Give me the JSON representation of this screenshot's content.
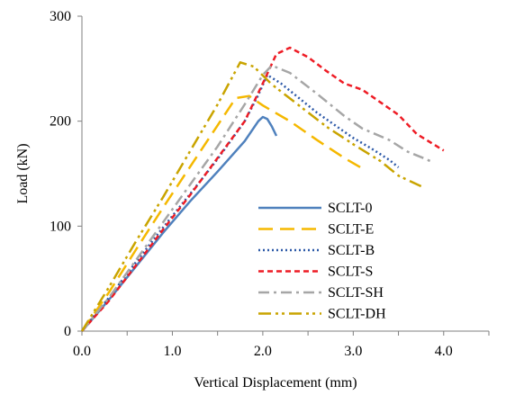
{
  "chart_data": {
    "type": "line",
    "title": "",
    "xlabel": "Vertical Displacement (mm)",
    "ylabel": "Load (kN)",
    "xlim": [
      0,
      4.5
    ],
    "ylim": [
      0,
      300
    ],
    "xticks": [
      0,
      1,
      2,
      3,
      4
    ],
    "xtick_labels": [
      "0.0",
      "1.0",
      "2.0",
      "3.0",
      "4.0"
    ],
    "yticks": [
      0,
      100,
      200,
      300
    ],
    "ytick_labels": [
      "0",
      "100",
      "200",
      "300"
    ],
    "grid": false,
    "legend_position": "lower-right",
    "series": [
      {
        "name": "SCLT-0",
        "color": "#4f81bd",
        "dash": "solid",
        "x": [
          0,
          0.3,
          0.6,
          0.9,
          1.2,
          1.5,
          1.8,
          1.95,
          2.0,
          2.05,
          2.1,
          2.15
        ],
        "y": [
          0,
          30,
          62,
          94,
          124,
          152,
          181,
          200,
          204,
          202,
          195,
          186
        ]
      },
      {
        "name": "SCLT-E",
        "color": "#f5b800",
        "dash": "long-dash",
        "x": [
          0,
          0.3,
          0.6,
          0.9,
          1.2,
          1.5,
          1.7,
          1.85,
          2.0,
          2.3,
          2.6,
          2.9,
          3.1
        ],
        "y": [
          0,
          37,
          78,
          118,
          157,
          196,
          222,
          224,
          215,
          200,
          182,
          165,
          155
        ]
      },
      {
        "name": "SCLT-B",
        "color": "#2e5aa8",
        "dash": "dotted",
        "x": [
          0,
          0.3,
          0.6,
          0.9,
          1.2,
          1.5,
          1.8,
          1.95,
          2.05,
          2.2,
          2.4,
          2.6,
          2.8,
          3.0,
          3.2,
          3.4,
          3.5
        ],
        "y": [
          0,
          32,
          66,
          99,
          131,
          164,
          200,
          225,
          244,
          236,
          222,
          208,
          196,
          184,
          174,
          163,
          156
        ]
      },
      {
        "name": "SCLT-S",
        "color": "#ee1c25",
        "dash": "short-dash",
        "x": [
          0,
          0.3,
          0.6,
          0.9,
          1.2,
          1.5,
          1.8,
          2.0,
          2.15,
          2.3,
          2.5,
          2.7,
          2.9,
          3.1,
          3.3,
          3.5,
          3.7,
          3.85,
          4.0
        ],
        "y": [
          0,
          29,
          63,
          97,
          130,
          165,
          200,
          236,
          264,
          270,
          261,
          248,
          236,
          230,
          218,
          206,
          188,
          180,
          172
        ]
      },
      {
        "name": "SCLT-SH",
        "color": "#a6a6a6",
        "dash": "dash-dot",
        "x": [
          0,
          0.3,
          0.6,
          0.9,
          1.2,
          1.5,
          1.8,
          2.0,
          2.1,
          2.3,
          2.6,
          2.9,
          3.1,
          3.4,
          3.6,
          3.8,
          3.85
        ],
        "y": [
          0,
          32,
          68,
          104,
          140,
          176,
          216,
          244,
          253,
          246,
          226,
          205,
          193,
          182,
          171,
          164,
          162
        ]
      },
      {
        "name": "SCLT-DH",
        "color": "#c9a400",
        "dash": "dash-dot-dot",
        "x": [
          0,
          0.3,
          0.6,
          0.9,
          1.2,
          1.5,
          1.75,
          1.9,
          2.1,
          2.4,
          2.7,
          3.0,
          3.3,
          3.5,
          3.75
        ],
        "y": [
          0,
          42,
          86,
          128,
          172,
          216,
          256,
          252,
          235,
          215,
          195,
          178,
          162,
          148,
          138
        ]
      }
    ]
  }
}
